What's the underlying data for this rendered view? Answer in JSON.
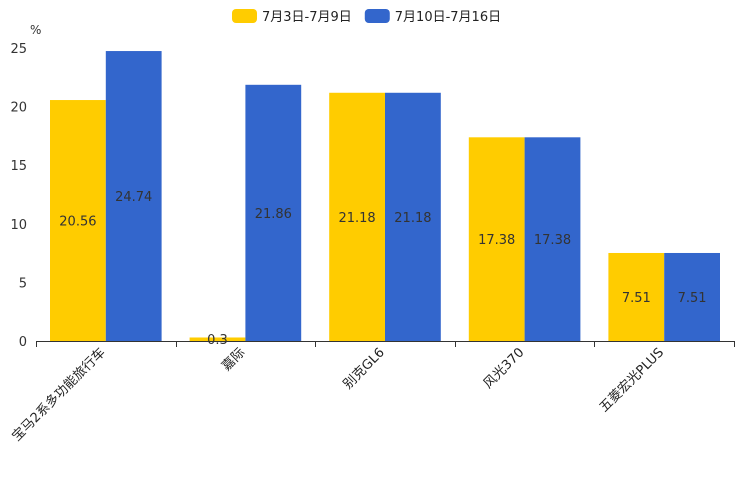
{
  "chart_data": {
    "type": "bar",
    "title": "",
    "xlabel": "",
    "ylabel": "%",
    "ylim": [
      0,
      25
    ],
    "yticks": [
      0,
      5,
      10,
      15,
      20,
      25
    ],
    "grid": false,
    "legend_position": "top-center",
    "categories": [
      "宝马2系多功能旅行车",
      "嘉际",
      "别克GL6",
      "风光370",
      "五菱宏光PLUS"
    ],
    "series": [
      {
        "name": "7月3日-7月9日",
        "color": "#FFCC00",
        "values": [
          20.56,
          0.3,
          21.18,
          17.38,
          7.51
        ]
      },
      {
        "name": "7月10日-7月16日",
        "color": "#3366CC",
        "values": [
          24.74,
          21.86,
          21.18,
          17.38,
          7.51
        ]
      }
    ]
  }
}
